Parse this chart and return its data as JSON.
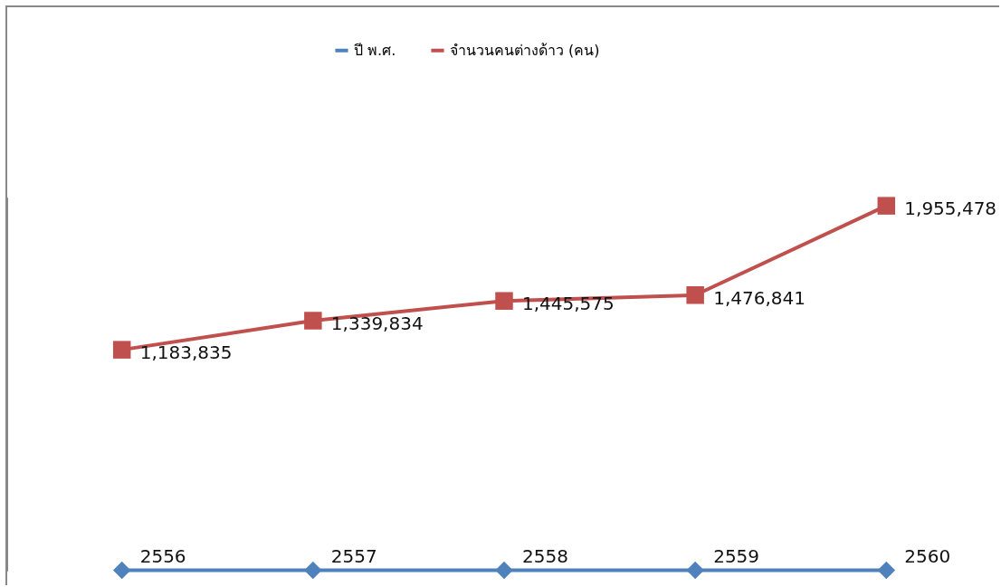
{
  "chart_data": {
    "type": "line",
    "categories": [
      null,
      null,
      null,
      null,
      null
    ],
    "relative": false,
    "legend": "top",
    "series": [
      {
        "name": "ปี พ.ศ.",
        "color": "#4f81bd",
        "marker": "diamond",
        "values": [
          2556,
          2557,
          2558,
          2559,
          2560
        ],
        "value_labels": [
          "2556",
          "2557",
          "2558",
          "2559",
          "2560"
        ]
      },
      {
        "name": "จำนวนคนต่างด้าว (คน)",
        "color": "#c0504d",
        "marker": "square",
        "values": [
          1183835,
          1339834,
          1445575,
          1476841,
          1955478
        ],
        "value_labels": [
          "1,183,835",
          "1,339,834",
          "1,445,575",
          "1,476,841",
          "1,955,478"
        ]
      }
    ]
  }
}
